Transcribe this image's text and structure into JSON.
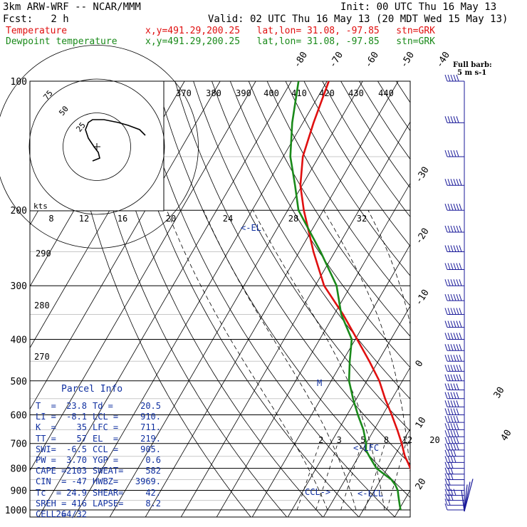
{
  "header": {
    "model": "3km ARW-WRF -- NCAR/MMM",
    "init": "Init: 00 UTC Thu 16 May 13",
    "fcst": "Fcst:   2 h",
    "valid": "Valid: 02 UTC Thu 16 May 13 (20 MDT Wed 15 May 13)",
    "temp_label": "Temperature",
    "temp_loc": "x,y=491.29,200.25   lat,lon= 31.08, -97.85   stn=GRK",
    "dew_label": "Dewpoint temperature",
    "dew_loc": "x,y=491.29,200.25   lat,lon= 31.08, -97.85   stn=GRK"
  },
  "colors": {
    "temperature": "#e01010",
    "dewpoint": "#1a8a1a",
    "barbs": "#1a1a9a",
    "annot": "#1030a0"
  },
  "chart_data": {
    "type": "line",
    "title": "3km ARW-WRF -- NCAR/MMM",
    "pressure_ticks": [
      "100",
      "200",
      "300",
      "400",
      "500",
      "600",
      "700",
      "800",
      "900",
      "1000"
    ],
    "isotherm_labels": [
      "-80",
      "-70",
      "-60",
      "-50",
      "-40",
      "-30",
      "-20",
      "-10",
      "0",
      "10",
      "20",
      "30",
      "40"
    ],
    "theta_labels": [
      "370",
      "380",
      "390",
      "400",
      "410",
      "420",
      "430",
      "440"
    ],
    "mixing_ratio_labels": [
      "2",
      "3",
      "5",
      "8",
      "12",
      "20"
    ],
    "left_theta_labels": [
      "290",
      "280",
      "270"
    ],
    "hodograph": {
      "units": "kts",
      "ring_labels": [
        "25",
        "50",
        "75"
      ],
      "speed_ticks": [
        "8",
        "12",
        "16",
        "20",
        "24",
        "28",
        "32"
      ],
      "u": [
        -3,
        2,
        1,
        -2,
        -6,
        -8,
        -6,
        -3,
        5,
        15,
        22,
        30,
        34
      ],
      "v": [
        -10,
        -8,
        -4,
        0,
        6,
        12,
        17,
        19,
        19,
        17,
        15,
        12,
        8
      ]
    },
    "annotations": [
      "<-EL",
      "<-LFC",
      "<-LCL",
      "CCL->",
      "M"
    ],
    "barb_title": "Full barb:",
    "barb_units": "5 m s-1",
    "series": [
      {
        "name": "Temperature",
        "units": "C",
        "pressure": [
          1000,
          950,
          925,
          900,
          875,
          850,
          825,
          800,
          775,
          750,
          725,
          700,
          650,
          600,
          550,
          500,
          450,
          400,
          350,
          300,
          250,
          200,
          175,
          150,
          125,
          100
        ],
        "values": [
          24.5,
          22.5,
          21.8,
          21.2,
          21.0,
          19.8,
          18.2,
          16.5,
          14.8,
          13.0,
          11.5,
          10.0,
          6.5,
          2.5,
          -2.0,
          -6.5,
          -12.5,
          -19.5,
          -27.5,
          -37.5,
          -46.0,
          -55.5,
          -60.5,
          -64.5,
          -67.0,
          -69.5
        ]
      },
      {
        "name": "Dewpoint temperature",
        "units": "C",
        "pressure": [
          1000,
          975,
          950,
          925,
          900,
          875,
          850,
          825,
          800,
          775,
          750,
          725,
          700,
          650,
          600,
          550,
          500,
          450,
          400,
          350,
          300,
          250,
          200,
          175,
          150,
          125,
          100
        ],
        "values": [
          20.5,
          19.5,
          18.5,
          17.5,
          16.5,
          15.0,
          13.0,
          10.0,
          7.0,
          5.0,
          3.0,
          1.0,
          0.0,
          -3.0,
          -7.0,
          -11.0,
          -15.0,
          -18.0,
          -21.0,
          -28.0,
          -34.0,
          -44.0,
          -57.0,
          -62.0,
          -68.0,
          -73.0,
          -78.0
        ]
      }
    ]
  },
  "wind_barbs": {
    "pressure": [
      1000,
      975,
      950,
      925,
      900,
      875,
      850,
      825,
      800,
      775,
      750,
      725,
      700,
      675,
      650,
      625,
      600,
      575,
      550,
      525,
      500,
      475,
      450,
      425,
      400,
      375,
      350,
      325,
      300,
      275,
      250,
      225,
      200,
      175,
      150,
      125,
      100
    ],
    "speed_ms": [
      5,
      10,
      15,
      20,
      10,
      10,
      15,
      15,
      15,
      20,
      20,
      25,
      25,
      25,
      25,
      25,
      25,
      25,
      25,
      25,
      30,
      30,
      30,
      30,
      30,
      30,
      30,
      30,
      30,
      30,
      30,
      30,
      30,
      30,
      25,
      25,
      25
    ],
    "dir_deg": [
      170,
      185,
      200,
      215,
      230,
      240,
      245,
      245,
      248,
      250,
      252,
      252,
      250,
      250,
      250,
      250,
      250,
      248,
      248,
      248,
      245,
      245,
      245,
      245,
      245,
      245,
      245,
      245,
      245,
      245,
      245,
      248,
      250,
      255,
      260,
      260,
      260
    ]
  },
  "parcel_info": {
    "title": "Parcel Info",
    "rows": [
      [
        "T  =",
        "23.8",
        "Td =",
        "20.5"
      ],
      [
        "LI =",
        "-8.1",
        "LCL =",
        "910."
      ],
      [
        "K  =",
        "35",
        "LFC =",
        "711."
      ],
      [
        "TT =",
        "57",
        "EL  =",
        "219."
      ],
      [
        "SWI=",
        "-6.5",
        "CCL =",
        "905."
      ],
      [
        "PW =",
        "3.70",
        "YGP =",
        "0.6"
      ],
      [
        "CAPE =",
        "2103",
        "SWEAT=",
        "582"
      ],
      [
        "CIN  =",
        "-47",
        "HWBZ=",
        "3969."
      ],
      [
        "Tc  =",
        "24.9",
        "SHEAR=",
        "42."
      ],
      [
        "SREH =",
        "416",
        "LAPSE=",
        "8.2"
      ],
      [
        "CELL =",
        "264/32",
        "",
        ""
      ]
    ]
  }
}
